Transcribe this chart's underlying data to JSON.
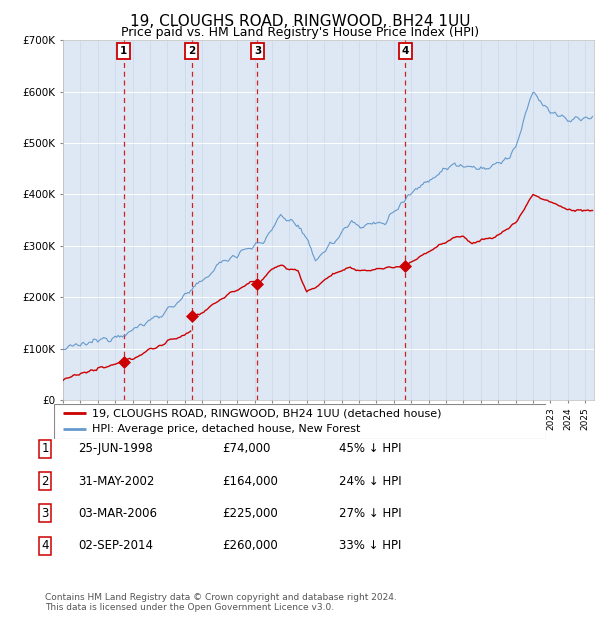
{
  "title": "19, CLOUGHS ROAD, RINGWOOD, BH24 1UU",
  "subtitle": "Price paid vs. HM Land Registry's House Price Index (HPI)",
  "footer": "Contains HM Land Registry data © Crown copyright and database right 2024.\nThis data is licensed under the Open Government Licence v3.0.",
  "legend_label_red": "19, CLOUGHS ROAD, RINGWOOD, BH24 1UU (detached house)",
  "legend_label_blue": "HPI: Average price, detached house, New Forest",
  "purchases": [
    {
      "label": "1",
      "date": "25-JUN-1998",
      "price": 74000,
      "note": "45% ↓ HPI",
      "x_year": 1998.5
    },
    {
      "label": "2",
      "date": "31-MAY-2002",
      "price": 164000,
      "note": "24% ↓ HPI",
      "x_year": 2002.4
    },
    {
      "label": "3",
      "date": "03-MAR-2006",
      "price": 225000,
      "note": "27% ↓ HPI",
      "x_year": 2006.17
    },
    {
      "label": "4",
      "date": "02-SEP-2014",
      "price": 260000,
      "note": "33% ↓ HPI",
      "x_year": 2014.67
    }
  ],
  "ylim": [
    0,
    700000
  ],
  "yticks": [
    0,
    100000,
    200000,
    300000,
    400000,
    500000,
    600000,
    700000
  ],
  "ytick_labels": [
    "£0",
    "£100K",
    "£200K",
    "£300K",
    "£400K",
    "£500K",
    "£600K",
    "£700K"
  ],
  "xlim_start": 1995.0,
  "xlim_end": 2025.5,
  "red_color": "#cc0000",
  "blue_color": "#6699cc",
  "bg_color": "#dde8f4",
  "grid_color": "#ffffff",
  "outer_bg": "#f0f4f8",
  "title_fontsize": 11,
  "subtitle_fontsize": 9,
  "tick_fontsize": 7.5,
  "legend_fontsize": 8,
  "table_fontsize": 8.5,
  "footer_fontsize": 6.5
}
